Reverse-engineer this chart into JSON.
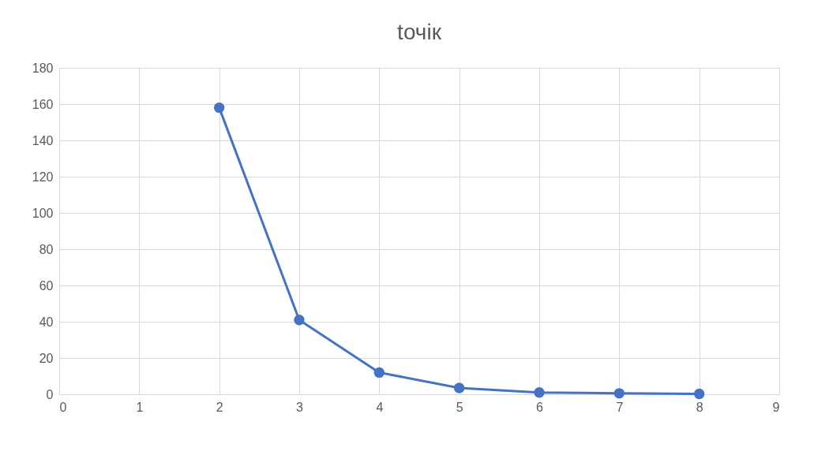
{
  "chart_data": {
    "type": "line",
    "title": "tочік",
    "x": [
      2,
      3,
      4,
      5,
      6,
      7,
      8
    ],
    "series": [
      {
        "color": "#4472c4",
        "values": [
          158,
          41,
          12,
          3.5,
          1,
          0.5,
          0.2
        ]
      }
    ],
    "xlim": [
      0,
      9
    ],
    "xticks": [
      0,
      1,
      2,
      3,
      4,
      5,
      6,
      7,
      8,
      9
    ],
    "ylim": [
      0,
      180
    ],
    "yticks": [
      0,
      20,
      40,
      60,
      80,
      100,
      120,
      140,
      160,
      180
    ],
    "grid": true,
    "marker": "circle",
    "line_style": "solid",
    "legend": false
  }
}
